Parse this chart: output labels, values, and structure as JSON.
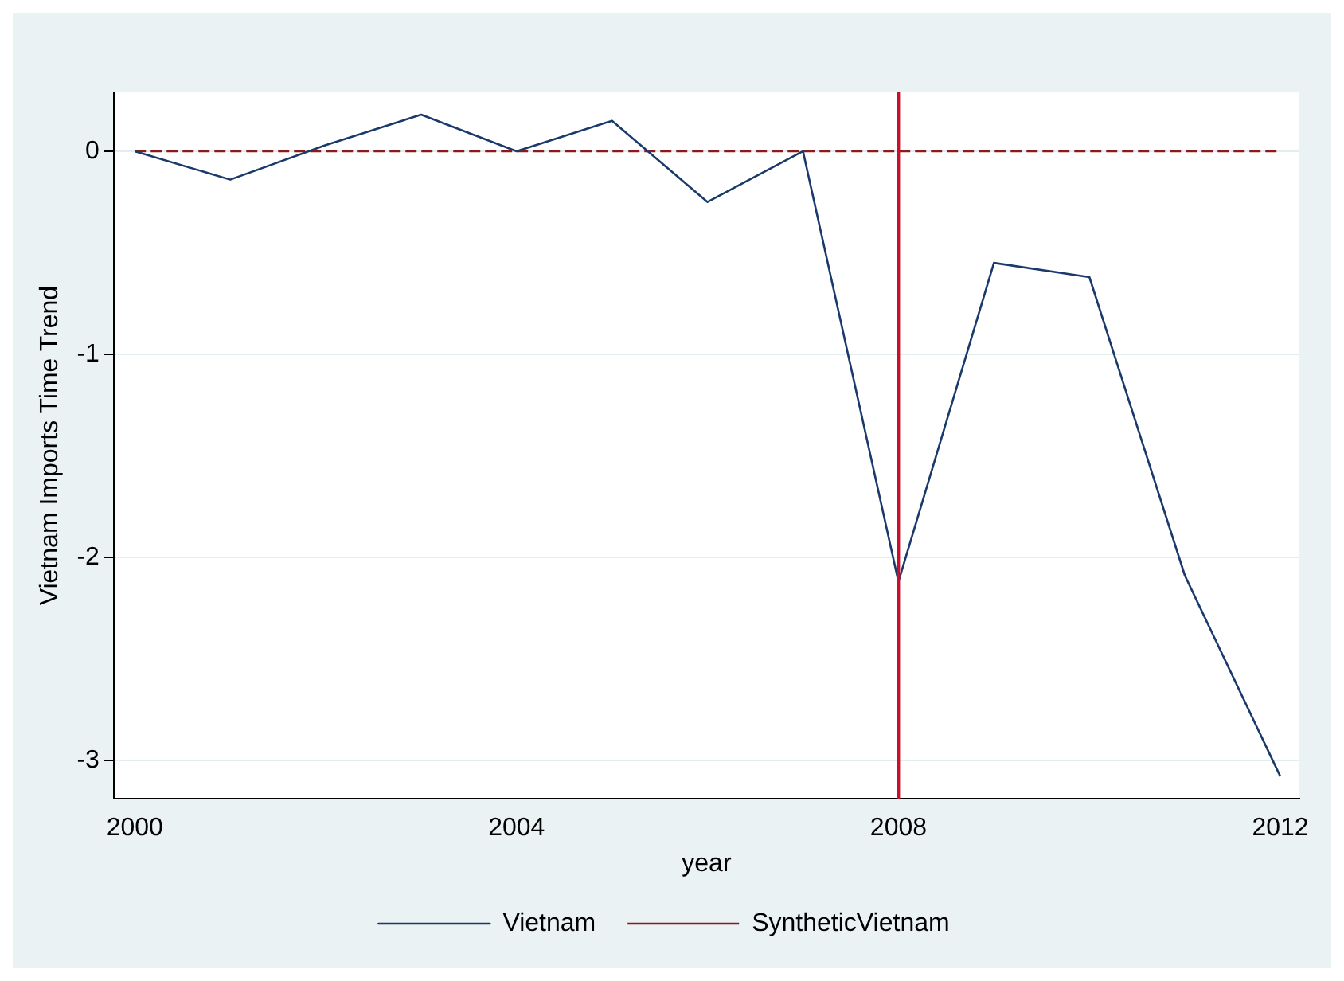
{
  "chart_data": {
    "type": "line",
    "xlabel": "year",
    "ylabel": "Vietnam Imports Time Trend",
    "x": [
      2000,
      2001,
      2002,
      2003,
      2004,
      2005,
      2006,
      2007,
      2008,
      2009,
      2010,
      2011,
      2012
    ],
    "series": [
      {
        "name": "Vietnam",
        "color": "#1a3a6b",
        "line_style": "solid",
        "values": [
          0,
          -0.14,
          0.03,
          0.18,
          0,
          0.15,
          -0.25,
          0,
          -2.12,
          -0.55,
          -0.62,
          -2.09,
          -3.08
        ]
      },
      {
        "name": "SyntheticVietnam",
        "color": "#8b1a1a",
        "line_style": "dashed",
        "values": [
          0,
          0,
          0,
          0,
          0,
          0,
          0,
          0,
          0,
          0,
          0,
          0,
          0
        ]
      }
    ],
    "xlim": [
      1999.78,
      2012.2
    ],
    "xticks": [
      2000,
      2004,
      2008,
      2012
    ],
    "ylim": [
      -3.19,
      0.29
    ],
    "yticks": [
      0,
      -1,
      -2,
      -3
    ],
    "ref_lines": [
      {
        "axis": "x",
        "value": 2008,
        "color": "#c8102e"
      }
    ],
    "grid": "y",
    "legend": "bottom",
    "marker": "none"
  }
}
